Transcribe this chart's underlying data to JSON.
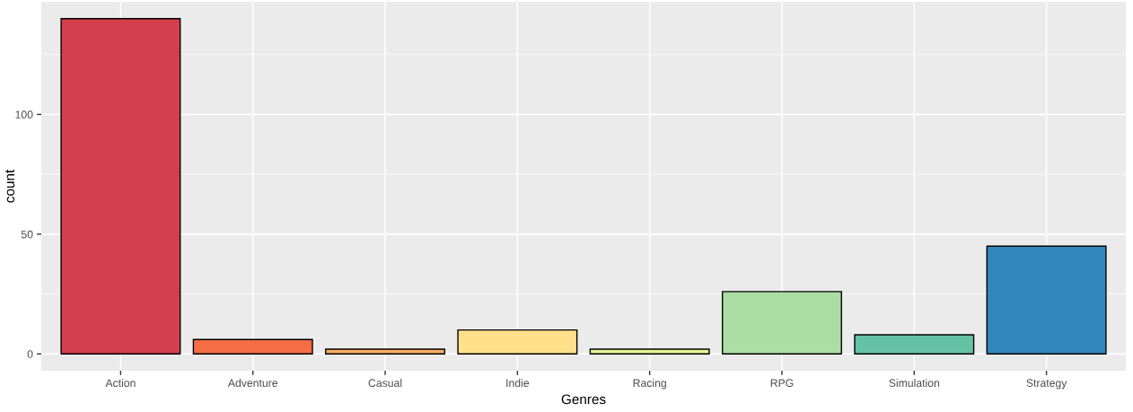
{
  "chart_data": {
    "type": "bar",
    "xlabel": "Genres",
    "ylabel": "count",
    "categories": [
      "Action",
      "Adventure",
      "Casual",
      "Indie",
      "Racing",
      "RPG",
      "Simulation",
      "Strategy"
    ],
    "values": [
      140,
      6,
      2,
      10,
      2,
      26,
      8,
      45
    ],
    "colors": [
      "#d53e4f",
      "#f46d43",
      "#fdae61",
      "#fee08b",
      "#e6f598",
      "#abdda4",
      "#66c2a5",
      "#3288bd"
    ],
    "ylim": [
      -7,
      147
    ],
    "yticks": [
      0,
      50,
      100
    ],
    "grid": true
  }
}
